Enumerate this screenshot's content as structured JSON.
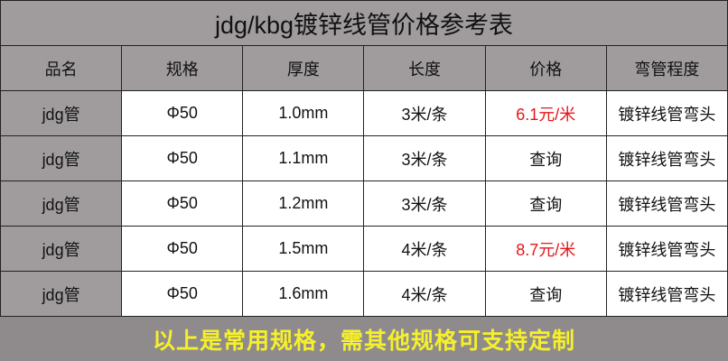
{
  "title": "jdg/kbg镀锌线管价格参考表",
  "headers": [
    "品名",
    "规格",
    "厚度",
    "长度",
    "价格",
    "弯管程度"
  ],
  "rows": [
    [
      "jdg管",
      "Φ50",
      "1.0mm",
      "3米/条",
      "6.1元/米",
      "镀锌线管弯头"
    ],
    [
      "jdg管",
      "Φ50",
      "1.1mm",
      "3米/条",
      "查询",
      "镀锌线管弯头"
    ],
    [
      "jdg管",
      "Φ50",
      "1.2mm",
      "3米/条",
      "查询",
      "镀锌线管弯头"
    ],
    [
      "jdg管",
      "Φ50",
      "1.5mm",
      "4米/条",
      "8.7元/米",
      "镀锌线管弯头"
    ],
    [
      "jdg管",
      "Φ50",
      "1.6mm",
      "4米/条",
      "查询",
      "镀锌线管弯头"
    ]
  ],
  "footer": "以上是常用规格，需其他规格可支持定制",
  "colors": {
    "header_bg": "#a09c9d",
    "footer_bg": "#8f8b8c",
    "footer_text": "#f6f02a",
    "price_red": "#e8151b"
  }
}
